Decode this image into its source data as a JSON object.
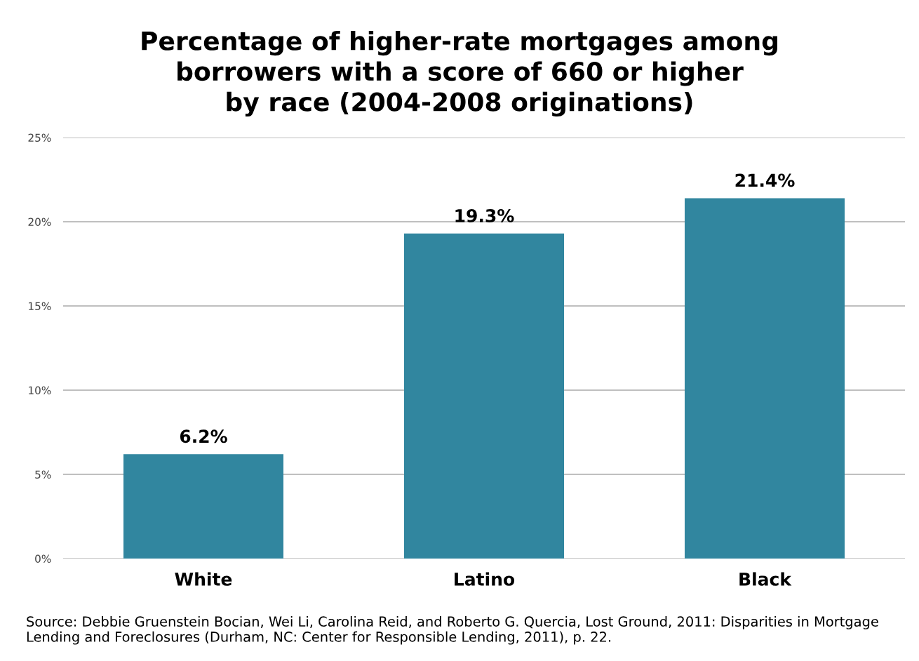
{
  "chart_data": {
    "type": "bar",
    "title": "Percentage of higher-rate mortgages among\nborrowers with a score of 660 or higher\nby race (2004-2008 originations)",
    "categories": [
      "White",
      "Latino",
      "Black"
    ],
    "values": [
      6.2,
      19.3,
      21.4
    ],
    "value_labels": [
      "6.2%",
      "19.3%",
      "21.4%"
    ],
    "color": "#31869f",
    "ylim": [
      0,
      25
    ],
    "yticks": [
      {
        "value": 0,
        "label": "0%"
      },
      {
        "value": 5,
        "label": "5%"
      },
      {
        "value": 10,
        "label": "10%"
      },
      {
        "value": 15,
        "label": "15%"
      },
      {
        "value": 20,
        "label": "20%"
      },
      {
        "value": 25,
        "label": "25%"
      }
    ],
    "grid": "y",
    "annotations": [
      "Source: Debbie Gruenstein Bocian, Wei Li, Carolina Reid, and Roberto G. Quercia, Lost Ground, 2011: Disparities in Mortgage Lending and Foreclosures (Durham, NC: Center for Responsible Lending, 2011), p. 22."
    ]
  }
}
